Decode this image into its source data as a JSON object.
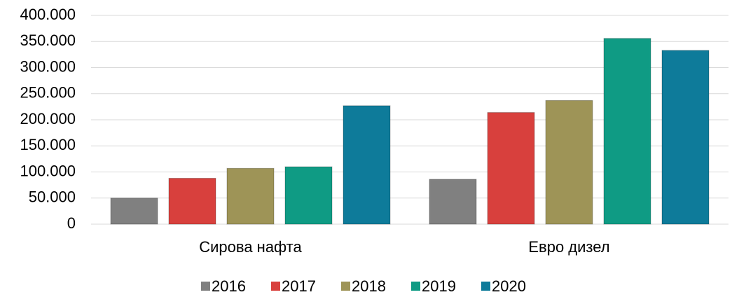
{
  "chart_data": {
    "type": "bar",
    "categories": [
      "Сирова нафта",
      "Евро дизел"
    ],
    "series": [
      {
        "name": "2016",
        "color": "#808080",
        "values": [
          50000,
          86000
        ]
      },
      {
        "name": "2017",
        "color": "#d8403d",
        "values": [
          88000,
          214000
        ]
      },
      {
        "name": "2018",
        "color": "#9e9457",
        "values": [
          107000,
          237000
        ]
      },
      {
        "name": "2019",
        "color": "#0f9b84",
        "values": [
          110000,
          356000
        ]
      },
      {
        "name": "2020",
        "color": "#0e7b9a",
        "values": [
          227000,
          333000
        ]
      }
    ],
    "ylim": [
      0,
      400000
    ],
    "yticks": [
      0,
      {
        "value": 50000,
        "label": "50.000"
      },
      {
        "value": 100000,
        "label": "100.000"
      },
      {
        "value": 150000,
        "label": "150.000"
      },
      {
        "value": 200000,
        "label": "200.000"
      },
      {
        "value": 250000,
        "label": "250.000"
      },
      {
        "value": 300000,
        "label": "300.000"
      },
      {
        "value": 350000,
        "label": "350.000"
      },
      {
        "value": 400000,
        "label": "400.000"
      }
    ],
    "grid": true,
    "legend": "bottom"
  }
}
